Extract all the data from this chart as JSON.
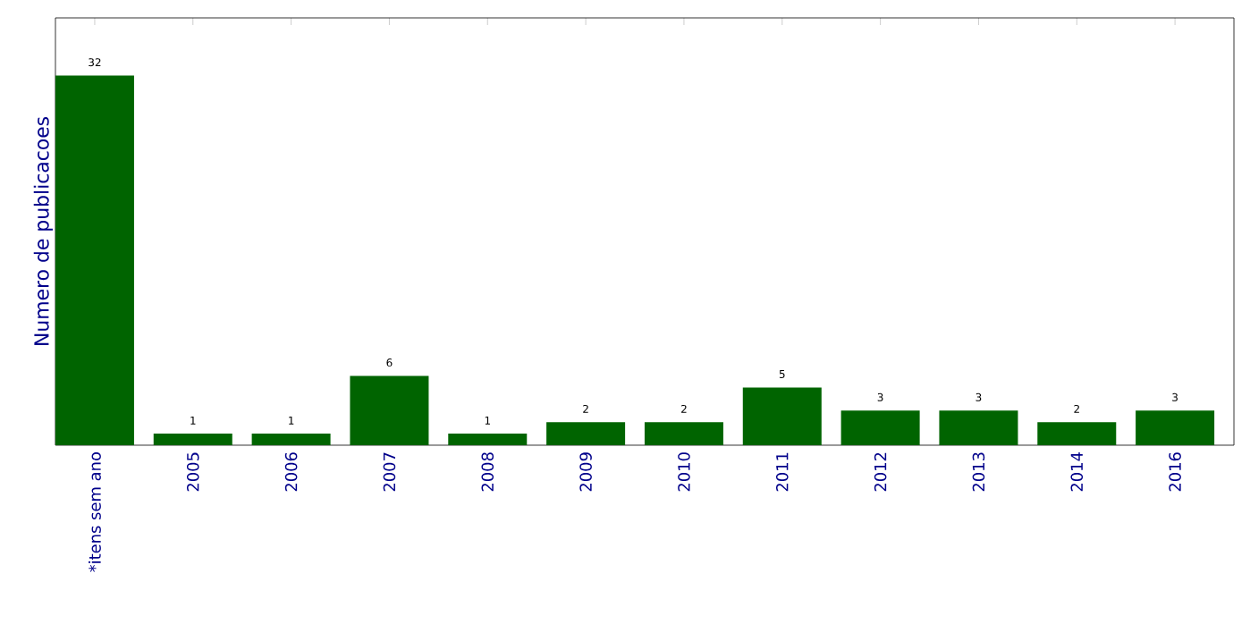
{
  "chart_data": {
    "type": "bar",
    "ylabel": "Numero de publicacoes",
    "categories": [
      "*itens sem ano",
      "2005",
      "2006",
      "2007",
      "2008",
      "2009",
      "2010",
      "2011",
      "2012",
      "2013",
      "2014",
      "2016"
    ],
    "values": [
      32,
      1,
      1,
      6,
      1,
      2,
      2,
      5,
      3,
      3,
      2,
      3
    ],
    "color": "#006400",
    "ylim": [
      0,
      37
    ],
    "data_labels": true,
    "tick_labels": "x"
  }
}
